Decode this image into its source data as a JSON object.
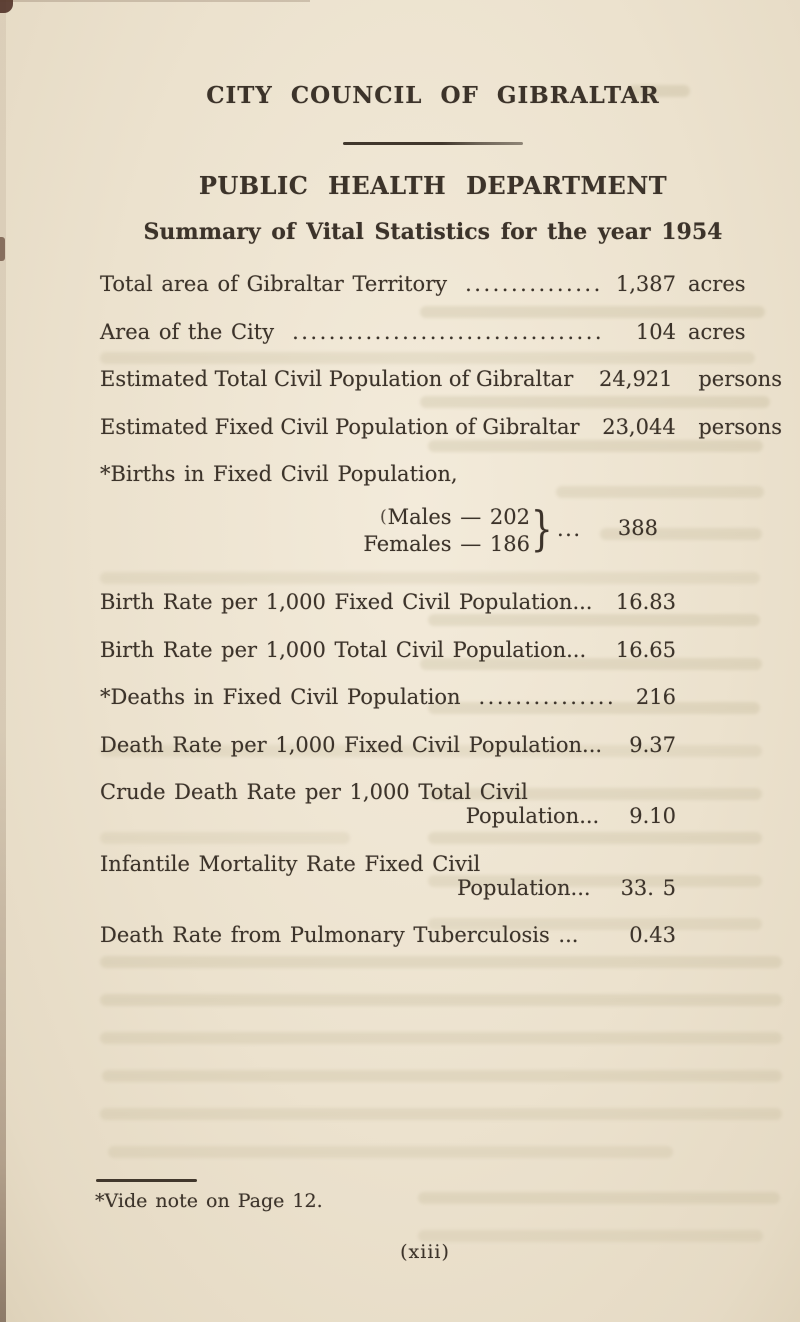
{
  "colors": {
    "paper": "#ebe1cd",
    "ink": "#3c332a"
  },
  "page": {
    "header": {
      "org": "CITY COUNCIL OF GIBRALTAR",
      "department": "PUBLIC HEALTH DEPARTMENT",
      "summary_title": "Summary of Vital Statistics for the year 1954"
    },
    "stats": {
      "total_area": {
        "label": "Total area of Gibraltar Territory",
        "leader": "...............",
        "value": "1,387",
        "unit": "acres"
      },
      "city_area": {
        "label": "Area of the City",
        "leader": "..................................",
        "value": "104",
        "unit": "acres"
      },
      "est_total_population": {
        "label": "Estimated Total Civil Population of Gibraltar",
        "value": "24,921",
        "unit": "persons"
      },
      "est_fixed_population": {
        "label": "Estimated Fixed Civil Population of Gibraltar",
        "value": "23,044",
        "unit": "persons"
      },
      "births_heading": "*Births in Fixed Civil Population,",
      "births_detail": {
        "open_paren": "(",
        "males_label": "Males",
        "dash_males": "—",
        "males_value": "202",
        "females_label": "Females",
        "dash_females": "—",
        "females_value": "186",
        "brace": "}",
        "dots": "...",
        "total": "388"
      },
      "birth_rate_fixed": {
        "label": "Birth Rate per 1,000 Fixed Civil Population...",
        "value": "16.83"
      },
      "birth_rate_total": {
        "label": "Birth Rate per 1,000 Total Civil Population...",
        "value": "16.65"
      },
      "deaths_fixed": {
        "label": "*Deaths in Fixed Civil Population",
        "leader": "...............",
        "value": "216"
      },
      "death_rate_fixed": {
        "label": "Death Rate per 1,000 Fixed Civil Population...",
        "value": "9.37"
      },
      "crude_death_rate": {
        "label_line1": "Crude Death Rate per 1,000 Total Civil",
        "label_line2": "Population...",
        "value": "9.10"
      },
      "infantile_mortality": {
        "label_line1": "Infantile Mortality Rate Fixed Civil",
        "label_line2": "Population...",
        "value": "33. 5"
      },
      "tb_death_rate": {
        "label": "Death Rate from Pulmonary Tuberculosis ...",
        "value": "0.43"
      }
    },
    "footnote": "*Vide note on Page 12.",
    "page_number": "(xiii)"
  }
}
